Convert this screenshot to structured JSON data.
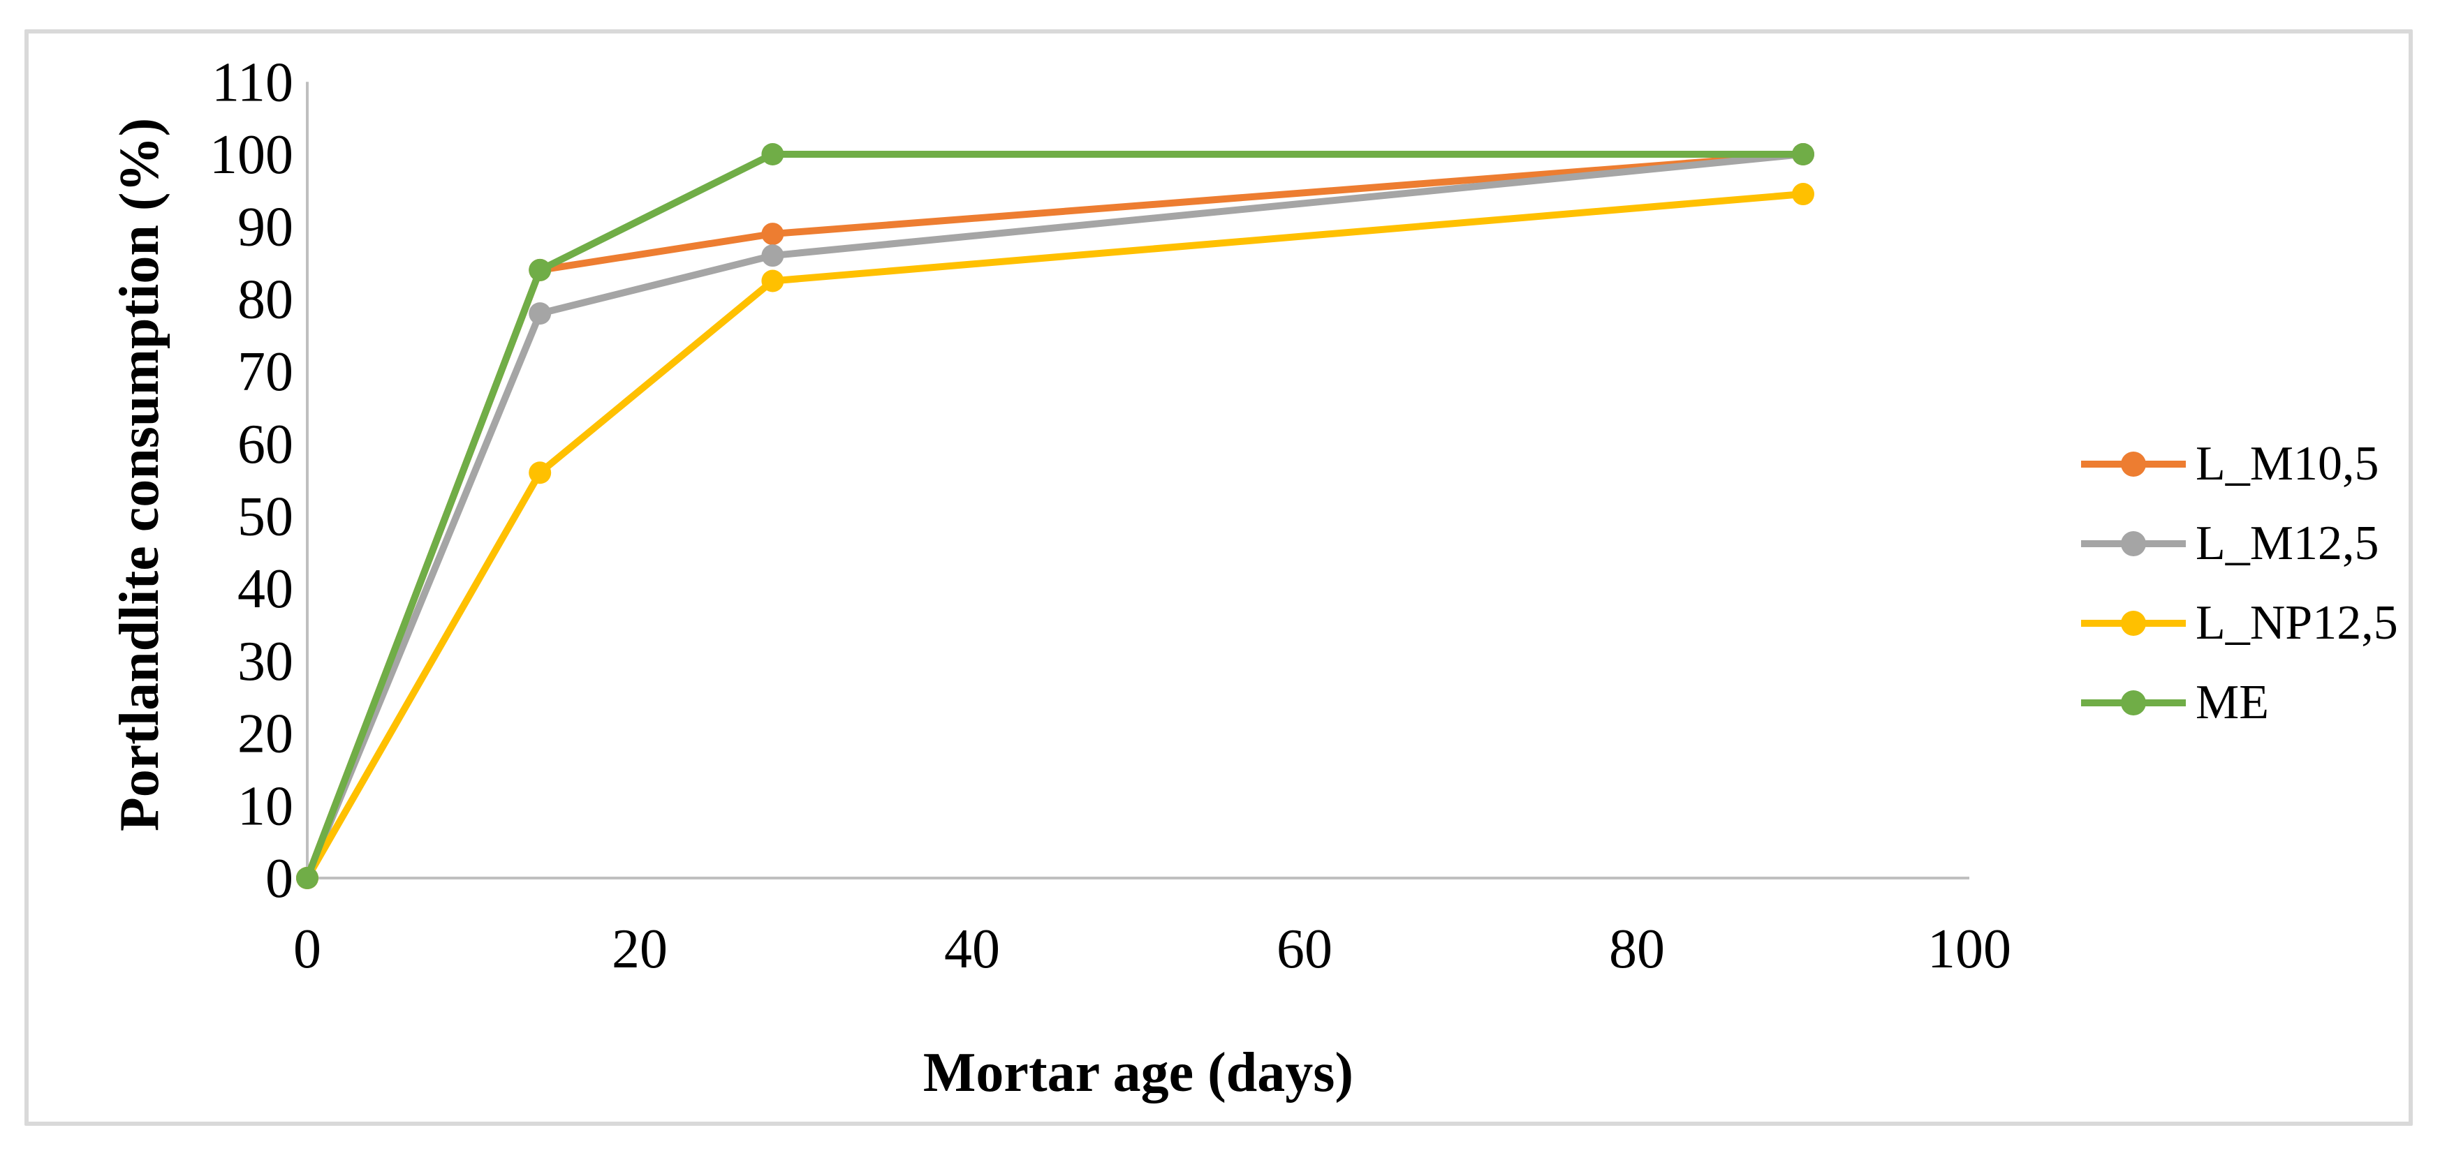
{
  "chart_data": {
    "type": "line",
    "title": "",
    "xlabel": "Mortar age (days)",
    "ylabel": "Portlandlite consumption (%)",
    "x": [
      0,
      14,
      28,
      90
    ],
    "series": [
      {
        "name": "L_M10,5",
        "color": "#ED7D31",
        "values": [
          0,
          84,
          89,
          100
        ]
      },
      {
        "name": "L_M12,5",
        "color": "#A5A5A5",
        "values": [
          0,
          78,
          86,
          100
        ]
      },
      {
        "name": "L_NP12,5",
        "color": "#FFC000",
        "values": [
          0,
          56,
          82.5,
          94.5
        ]
      },
      {
        "name": "ME",
        "color": "#70AD47",
        "values": [
          0,
          84,
          100,
          100
        ]
      }
    ],
    "xlim": [
      0,
      100
    ],
    "ylim": [
      0,
      110
    ],
    "x_ticks": [
      0,
      20,
      40,
      60,
      80,
      100
    ],
    "y_ticks": [
      0,
      10,
      20,
      30,
      40,
      50,
      60,
      70,
      80,
      90,
      100,
      110
    ],
    "grid": false,
    "legend_position": "right",
    "marker": "circle",
    "axis_color": "#BFBFBF",
    "text_color": "#000000",
    "frame_border_color": "#D9D9D9",
    "background_color": "#FFFFFF"
  }
}
